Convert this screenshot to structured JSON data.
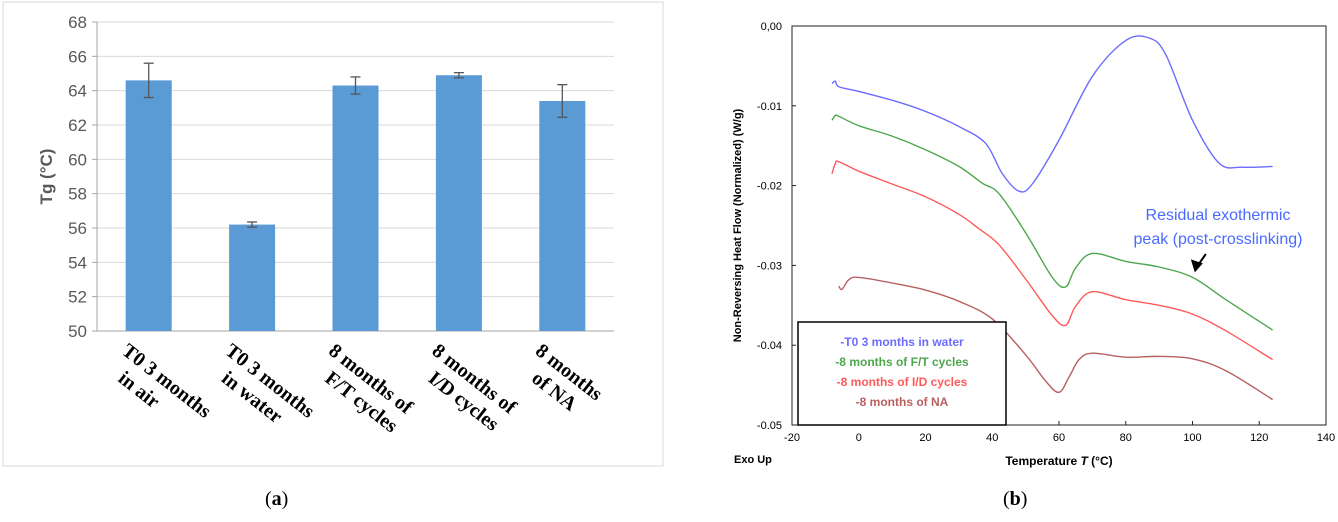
{
  "panels": {
    "a": {
      "open": "(",
      "letter": "a",
      "close": ")"
    },
    "b": {
      "open": "(",
      "letter": "b",
      "close": ")"
    }
  },
  "chart_data": [
    {
      "type": "bar",
      "ylabel": "Tg (°C)",
      "xlabel": "",
      "ylim": [
        50,
        68
      ],
      "yticks": [
        50,
        52,
        54,
        56,
        58,
        60,
        62,
        64,
        66,
        68
      ],
      "grid": true,
      "bar_color": "#5b9bd5",
      "categories": [
        [
          "T0 3 months",
          "in air"
        ],
        [
          "T0 3 months",
          "in water"
        ],
        [
          "8 months of",
          "F/T cycles"
        ],
        [
          "8 months of",
          "I/D cycles"
        ],
        [
          "8 months",
          "of NA"
        ]
      ],
      "values": [
        64.6,
        56.2,
        64.3,
        64.9,
        63.4
      ],
      "errors": [
        1.0,
        0.15,
        0.5,
        0.15,
        0.95
      ]
    },
    {
      "type": "line",
      "xlabel_prefix": "Temperature ",
      "xlabel_var": "T",
      "xlabel_suffix": " (°C)",
      "ylabel": "Non-Reversing Heat Flow (Normalized) (W/g)",
      "corner_label": "Exo Up",
      "xlim": [
        -20,
        140
      ],
      "ylim": [
        -0.05,
        0.0
      ],
      "xticks": [
        -20,
        0,
        20,
        40,
        60,
        80,
        100,
        120,
        140
      ],
      "yticks": [
        0.0,
        -0.01,
        -0.02,
        -0.03,
        -0.04,
        -0.05
      ],
      "ytick_labels": [
        "0,00",
        "-0.01",
        "-0.02",
        "-0.03",
        "-0.04",
        "-0.05"
      ],
      "series": [
        {
          "name": "-T0 3 months in water",
          "color": "#6b6bff",
          "x": [
            -8,
            -7,
            -6,
            0,
            10,
            20,
            30,
            38,
            43,
            48,
            52,
            60,
            70,
            80,
            87,
            92,
            100,
            108,
            115,
            124
          ],
          "y": [
            -0.0072,
            -0.0069,
            -0.0076,
            -0.0082,
            -0.0093,
            -0.0107,
            -0.0126,
            -0.0147,
            -0.0185,
            -0.0207,
            -0.0198,
            -0.0143,
            -0.0063,
            -0.0018,
            -0.0015,
            -0.0036,
            -0.0118,
            -0.0172,
            -0.0177,
            -0.0176
          ]
        },
        {
          "name": "-8 months of F/T cycles",
          "color": "#4ea64e",
          "x": [
            -8,
            -7,
            -6,
            0,
            10,
            20,
            30,
            37,
            42,
            50,
            58,
            62,
            65,
            70,
            80,
            90,
            100,
            110,
            124
          ],
          "y": [
            -0.0118,
            -0.0112,
            -0.0113,
            -0.0125,
            -0.0138,
            -0.0155,
            -0.0176,
            -0.0197,
            -0.021,
            -0.0259,
            -0.0315,
            -0.0327,
            -0.0303,
            -0.0285,
            -0.0295,
            -0.0302,
            -0.0315,
            -0.0343,
            -0.0381
          ]
        },
        {
          "name": "-8 months of I/D cycles",
          "color": "#ff5a5a",
          "x": [
            -8,
            -7,
            -6,
            0,
            10,
            20,
            30,
            36,
            42,
            50,
            58,
            62,
            65,
            70,
            80,
            90,
            100,
            110,
            124
          ],
          "y": [
            -0.0185,
            -0.0172,
            -0.017,
            -0.0182,
            -0.0198,
            -0.0214,
            -0.0236,
            -0.0254,
            -0.0274,
            -0.0317,
            -0.0363,
            -0.0375,
            -0.0351,
            -0.0333,
            -0.0343,
            -0.035,
            -0.0361,
            -0.0382,
            -0.0418
          ]
        },
        {
          "name": "-8 months of NA",
          "color": "#b86060",
          "x": [
            -6,
            -5,
            -3,
            0,
            10,
            20,
            30,
            40,
            50,
            56,
            60,
            63,
            66,
            70,
            80,
            90,
            100,
            110,
            124
          ],
          "y": [
            -0.0326,
            -0.033,
            -0.0318,
            -0.0315,
            -0.0322,
            -0.0331,
            -0.0345,
            -0.0367,
            -0.0412,
            -0.0445,
            -0.0459,
            -0.044,
            -0.0418,
            -0.041,
            -0.0415,
            -0.0414,
            -0.0417,
            -0.0432,
            -0.0468
          ]
        }
      ],
      "annotation": {
        "lines": [
          "Residual exothermic",
          "peak (post-crosslinking)"
        ],
        "color": "#4a6bff",
        "arrow_to": [
          101,
          -0.031
        ]
      }
    }
  ]
}
